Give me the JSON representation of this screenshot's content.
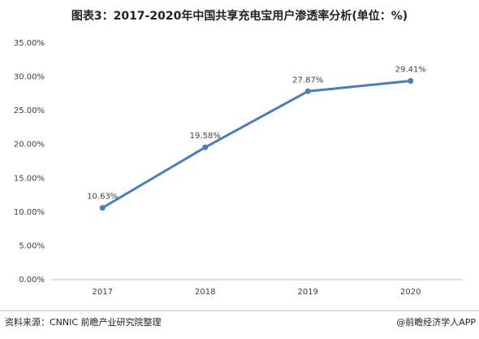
{
  "chart_data": {
    "type": "line",
    "title": "图表3：2017-2020年中国共享充电宝用户渗透率分析(单位：%)",
    "categories": [
      "2017",
      "2018",
      "2019",
      "2020"
    ],
    "series": [
      {
        "name": "用户渗透率",
        "color": "#4a7ebb",
        "values": [
          10.63,
          19.58,
          27.87,
          29.41
        ],
        "value_labels": [
          "10.63%",
          "19.58%",
          "27.87%",
          "29.41%"
        ]
      }
    ],
    "ylim": [
      0,
      35
    ],
    "yticks": [
      {
        "value": 0,
        "label": "0.00%"
      },
      {
        "value": 5,
        "label": "5.00%"
      },
      {
        "value": 10,
        "label": "10.00%"
      },
      {
        "value": 15,
        "label": "15.00%"
      },
      {
        "value": 20,
        "label": "20.00%"
      },
      {
        "value": 25,
        "label": "25.00%"
      },
      {
        "value": 30,
        "label": "30.00%"
      },
      {
        "value": 35,
        "label": "35.00%"
      }
    ],
    "grid": false,
    "source": "资料来源：CNNIC 前瞻产业研究院整理",
    "credit": "@前瞻经济学人APP"
  }
}
